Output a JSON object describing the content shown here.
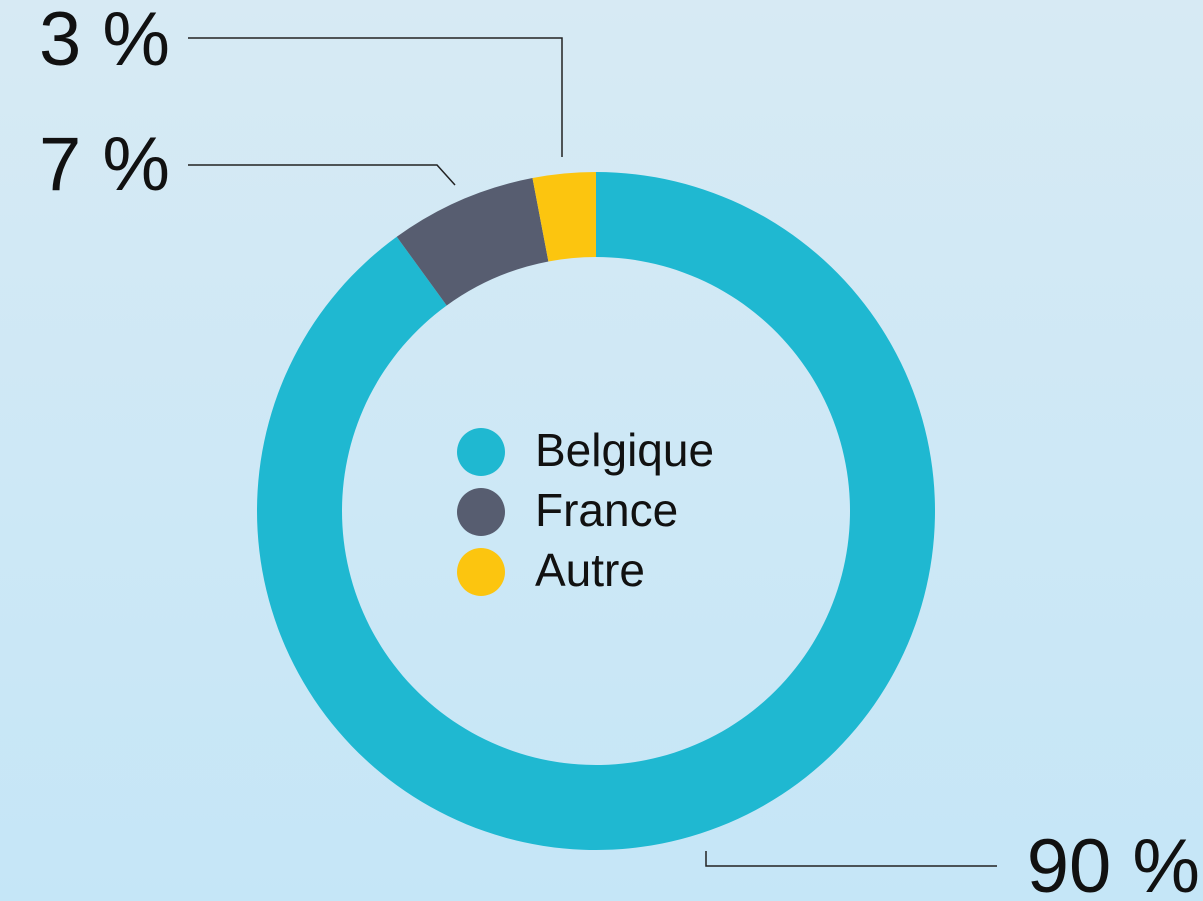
{
  "chart_data": {
    "type": "pie",
    "categories": [
      "Belgique",
      "France",
      "Autre"
    ],
    "values": [
      90,
      7,
      3
    ],
    "value_labels": [
      "90 %",
      "7 %",
      "3 %"
    ],
    "colors": [
      "#1fb8d1",
      "#575d70",
      "#fcc50f"
    ]
  }
}
